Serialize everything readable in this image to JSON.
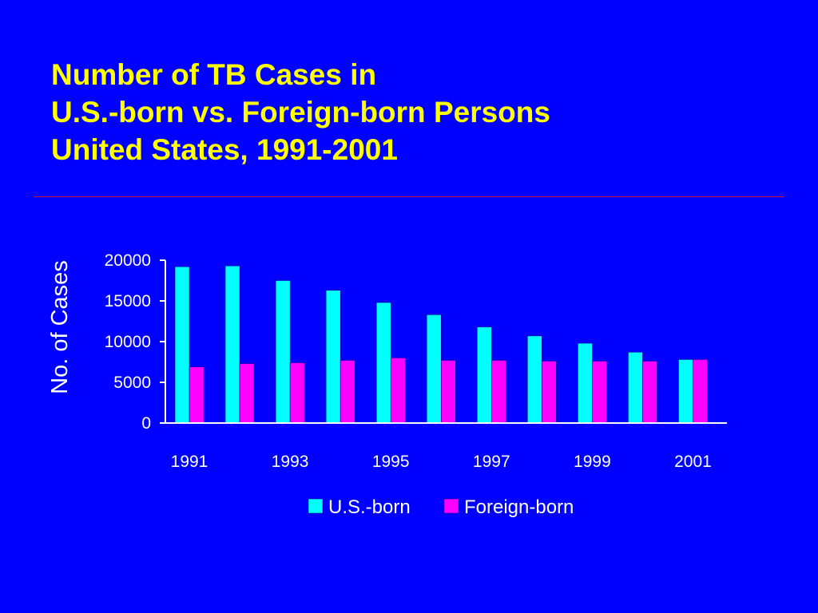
{
  "title_lines": [
    "Number of TB Cases in",
    "U.S.-born vs. Foreign-born Persons",
    "United States, 1991-2001"
  ],
  "colors": {
    "background": "#0000ff",
    "title": "#ffff00",
    "text": "#ffffff",
    "rule": "#c0143c",
    "us_born": "#00ffff",
    "foreign_born": "#ff00ff"
  },
  "chart_data": {
    "type": "bar",
    "title": "Number of TB Cases in U.S.-born vs. Foreign-born Persons United States, 1991-2001",
    "xlabel": "",
    "ylabel": "No. of Cases",
    "ylim": [
      0,
      20000
    ],
    "yticks": [
      0,
      5000,
      10000,
      15000,
      20000
    ],
    "x": [
      1991,
      1992,
      1993,
      1994,
      1995,
      1996,
      1997,
      1998,
      1999,
      2000,
      2001
    ],
    "xtick_labels": [
      "1991",
      "1993",
      "1995",
      "1997",
      "1999",
      "2001"
    ],
    "series": [
      {
        "name": "U.S.-born",
        "color": "#00ffff",
        "values": [
          19200,
          19300,
          17500,
          16300,
          14800,
          13300,
          11800,
          10700,
          9800,
          8700,
          7800
        ]
      },
      {
        "name": "Foreign-born",
        "color": "#ff00ff",
        "values": [
          6900,
          7300,
          7400,
          7700,
          8000,
          7700,
          7700,
          7600,
          7600,
          7600,
          7800
        ]
      }
    ],
    "grid": false,
    "legend": "bottom"
  }
}
